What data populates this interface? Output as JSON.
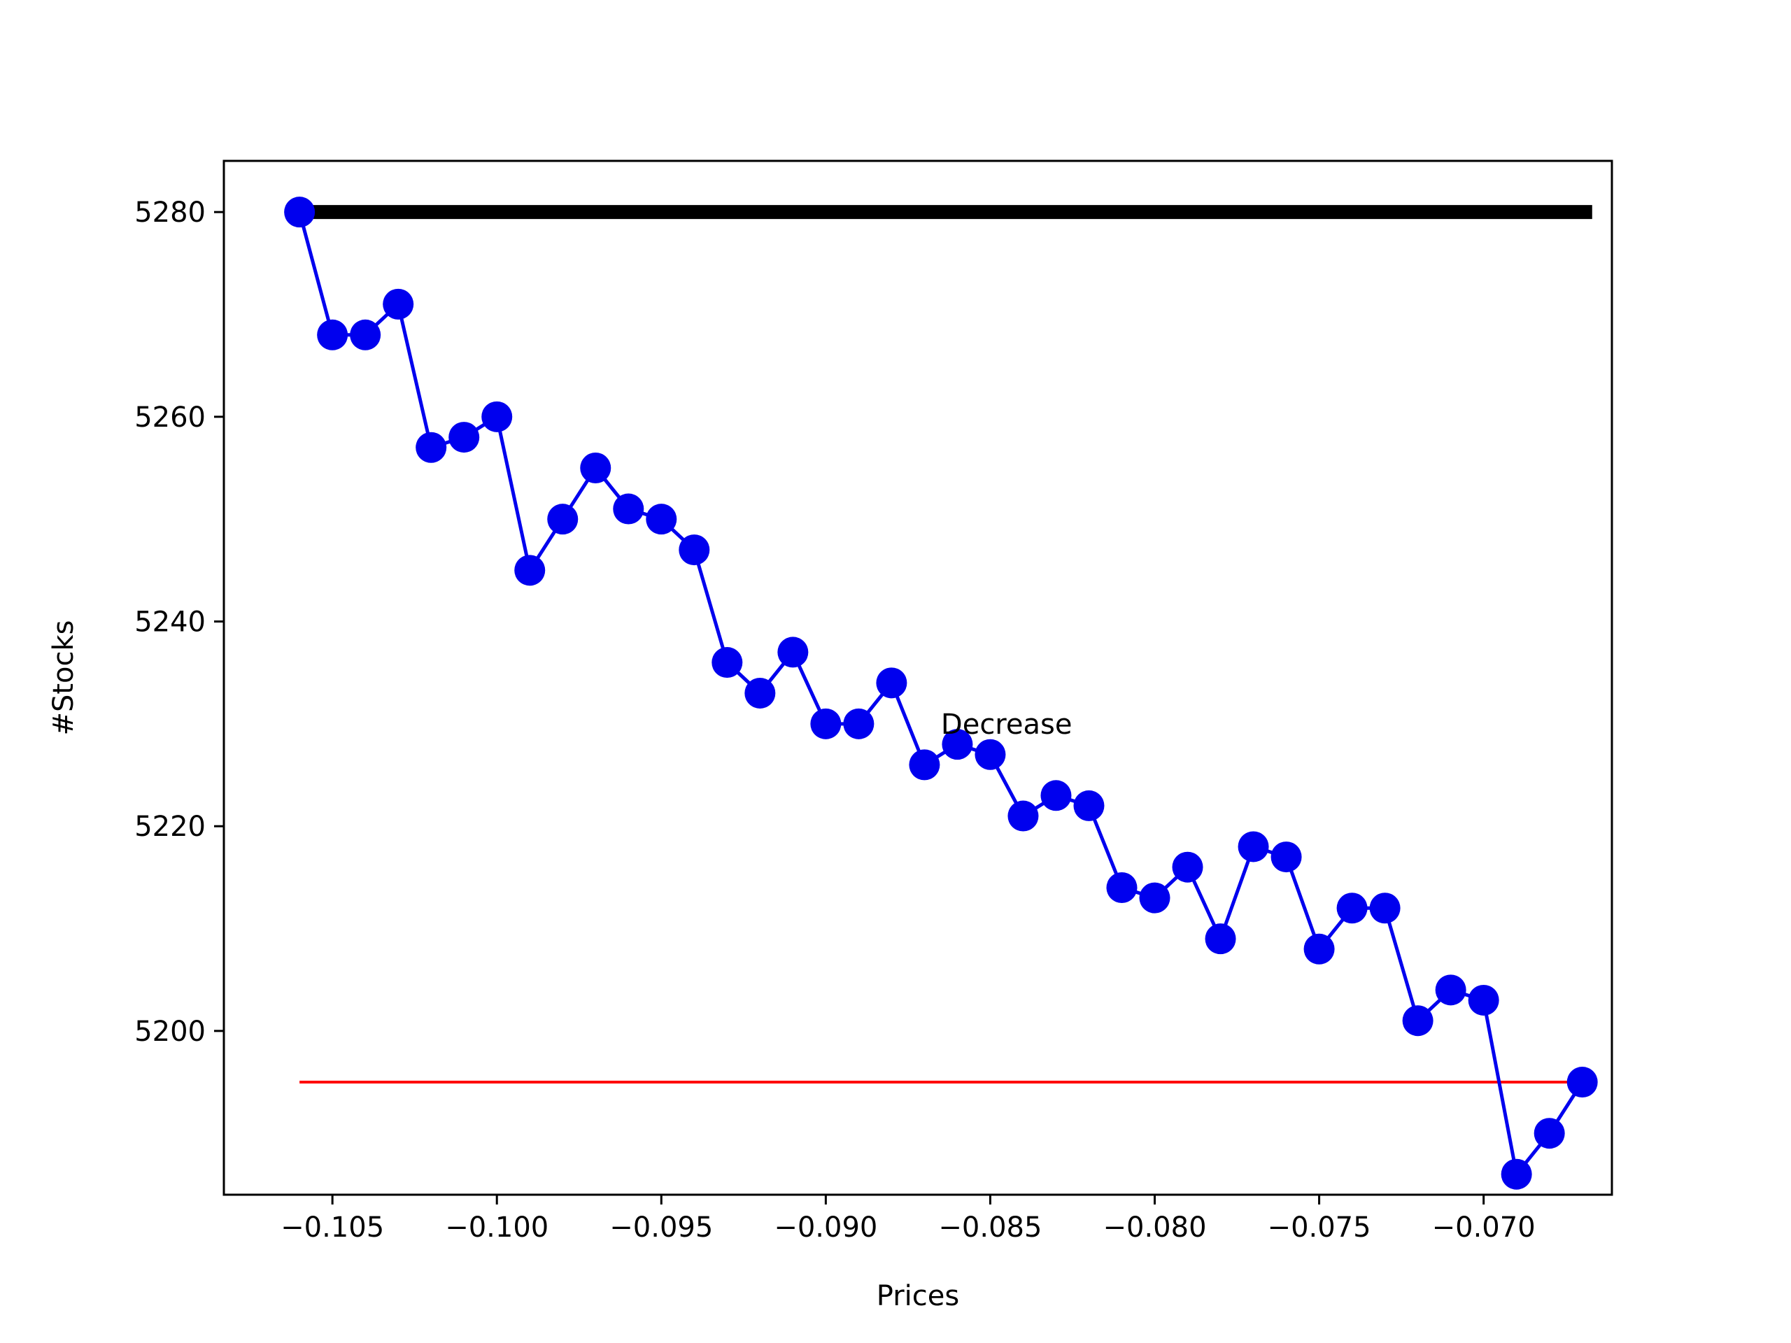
{
  "chart_data": {
    "type": "line",
    "xlabel": "Prices",
    "ylabel": "#Stocks",
    "xlim": [
      -0.1083,
      -0.0661
    ],
    "ylim": [
      5184.0,
      5285.0
    ],
    "x_ticks": [
      -0.105,
      -0.1,
      -0.095,
      -0.09,
      -0.085,
      -0.08,
      -0.075,
      -0.07
    ],
    "x_tick_labels": [
      "−0.105",
      "−0.100",
      "−0.095",
      "−0.090",
      "−0.085",
      "−0.080",
      "−0.075",
      "−0.070"
    ],
    "y_ticks": [
      5200,
      5220,
      5240,
      5260,
      5280
    ],
    "y_tick_labels": [
      "5200",
      "5220",
      "5240",
      "5260",
      "5280"
    ],
    "grid": false,
    "annotation": {
      "text": "Decrease",
      "x": -0.0865,
      "y": 5230
    },
    "series": [
      {
        "color": "#0000ee",
        "marker": "circle",
        "x": [
          -0.106,
          -0.105,
          -0.104,
          -0.103,
          -0.102,
          -0.101,
          -0.1,
          -0.099,
          -0.098,
          -0.097,
          -0.096,
          -0.095,
          -0.094,
          -0.093,
          -0.092,
          -0.091,
          -0.09,
          -0.089,
          -0.088,
          -0.087,
          -0.086,
          -0.085,
          -0.084,
          -0.083,
          -0.082,
          -0.081,
          -0.08,
          -0.079,
          -0.078,
          -0.077,
          -0.076,
          -0.075,
          -0.074,
          -0.073,
          -0.072,
          -0.071,
          -0.07,
          -0.069,
          -0.068,
          -0.067
        ],
        "y": [
          5280,
          5268,
          5268,
          5271,
          5257,
          5258,
          5260,
          5245,
          5250,
          5255,
          5251,
          5250,
          5247,
          5236,
          5233,
          5237,
          5230,
          5230,
          5234,
          5226,
          5228,
          5227,
          5221,
          5223,
          5222,
          5214,
          5213,
          5216,
          5209,
          5218,
          5217,
          5208,
          5212,
          5212,
          5201,
          5204,
          5203,
          5186,
          5190,
          5195
        ]
      },
      {
        "color": "#000000",
        "x": [
          -0.106,
          -0.0667
        ],
        "y": [
          5280,
          5280
        ]
      },
      {
        "color": "#ff0000",
        "x": [
          -0.106,
          -0.067
        ],
        "y": [
          5195,
          5195
        ]
      }
    ]
  }
}
